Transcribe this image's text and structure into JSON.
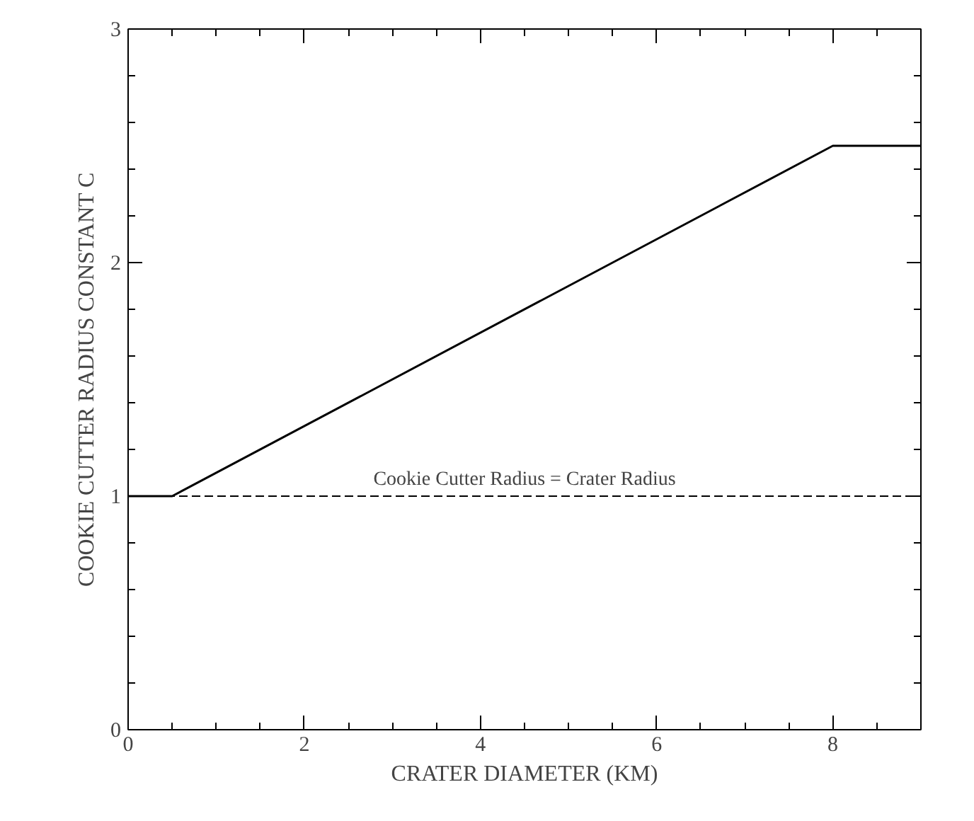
{
  "chart_data": {
    "type": "line",
    "xlabel": "CRATER DIAMETER (KM)",
    "ylabel": "COOKIE CUTTER RADIUS CONSTANT C",
    "x": [
      0,
      0.5,
      8,
      9
    ],
    "series": [
      {
        "color": "#000000",
        "values": [
          1,
          1,
          2.5,
          2.5
        ]
      }
    ],
    "xlim": [
      0,
      9
    ],
    "ylim": [
      0,
      3
    ],
    "xticks": [
      0,
      2,
      4,
      6,
      8
    ],
    "yticks": [
      0,
      1,
      2,
      3
    ],
    "ref_lines": [
      {
        "axis": "y",
        "value": 1,
        "label": "Cookie Cutter Radius = Crater Radius",
        "line_style": "dashed",
        "color": "#000000"
      }
    ],
    "grid": false,
    "line_style": "solid"
  }
}
